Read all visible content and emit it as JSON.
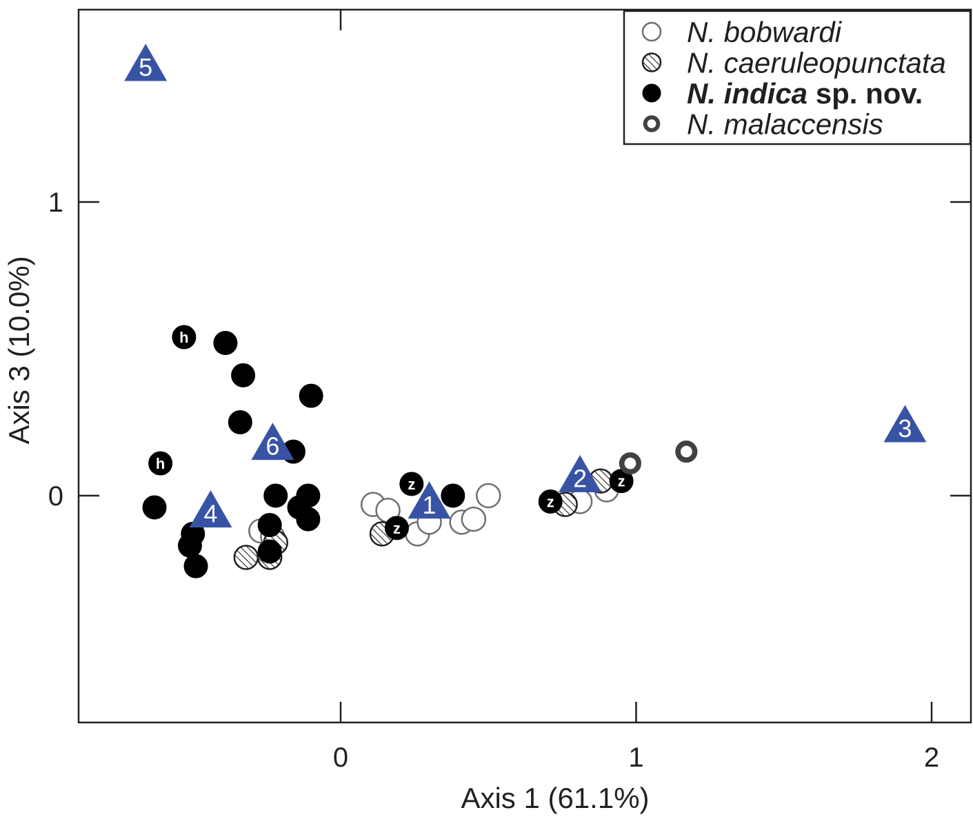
{
  "chart_data": {
    "type": "scatter",
    "xlabel": "Axis 1 (61.1%)",
    "ylabel": "Axis 3 (10.0%)",
    "xlim": [
      -0.88,
      2.13
    ],
    "ylim": [
      -0.78,
      1.65
    ],
    "x_ticks": [
      0,
      1,
      2
    ],
    "y_ticks": [
      0,
      1
    ],
    "x_tick_labels": [
      "0",
      "1",
      "2"
    ],
    "y_tick_labels": [
      "0",
      "1"
    ],
    "grid": false,
    "legend_position": "top-right",
    "legend": [
      {
        "name": "N. bobwardi",
        "style": "open",
        "italic": true
      },
      {
        "name": "N. caeruleopunctata",
        "style": "hatched",
        "italic": true
      },
      {
        "name": "N. indica",
        "suffix": " sp. nov.",
        "style": "filled",
        "italic": true,
        "bold": true
      },
      {
        "name": "N. malaccensis",
        "style": "thick-ring",
        "italic": true
      }
    ],
    "series": [
      {
        "name": "N. bobwardi",
        "style": "open",
        "color": "#6d6e71",
        "points": [
          {
            "x": 0.11,
            "y": -0.03
          },
          {
            "x": 0.16,
            "y": -0.05
          },
          {
            "x": 0.26,
            "y": -0.13
          },
          {
            "x": 0.3,
            "y": -0.09
          },
          {
            "x": 0.41,
            "y": -0.09
          },
          {
            "x": 0.45,
            "y": -0.08
          },
          {
            "x": 0.5,
            "y": 0.0
          },
          {
            "x": 0.81,
            "y": -0.02
          },
          {
            "x": 0.9,
            "y": 0.02
          },
          {
            "x": -0.27,
            "y": -0.12
          },
          {
            "x": -0.23,
            "y": -0.14
          }
        ]
      },
      {
        "name": "N. caeruleopunctata",
        "style": "hatched",
        "color": "#231f20",
        "points": [
          {
            "x": -0.32,
            "y": -0.21
          },
          {
            "x": -0.24,
            "y": -0.21
          },
          {
            "x": -0.22,
            "y": -0.16
          },
          {
            "x": 0.14,
            "y": -0.13
          },
          {
            "x": 0.76,
            "y": -0.03
          },
          {
            "x": 0.88,
            "y": 0.05
          }
        ]
      },
      {
        "name": "N. indica",
        "style": "filled",
        "color": "#000000",
        "points": [
          {
            "x": -0.53,
            "y": 0.54,
            "label": "h"
          },
          {
            "x": -0.39,
            "y": 0.52
          },
          {
            "x": -0.33,
            "y": 0.41
          },
          {
            "x": -0.34,
            "y": 0.25
          },
          {
            "x": -0.1,
            "y": 0.34
          },
          {
            "x": -0.16,
            "y": 0.15
          },
          {
            "x": -0.61,
            "y": 0.11,
            "label": "h"
          },
          {
            "x": -0.63,
            "y": -0.04
          },
          {
            "x": -0.22,
            "y": 0.0
          },
          {
            "x": -0.11,
            "y": 0.0
          },
          {
            "x": -0.14,
            "y": -0.04
          },
          {
            "x": -0.11,
            "y": -0.08
          },
          {
            "x": -0.24,
            "y": -0.1
          },
          {
            "x": -0.5,
            "y": -0.13
          },
          {
            "x": -0.51,
            "y": -0.17
          },
          {
            "x": -0.49,
            "y": -0.24
          },
          {
            "x": -0.24,
            "y": -0.19
          },
          {
            "x": 0.38,
            "y": 0.0
          },
          {
            "x": 0.24,
            "y": 0.04,
            "label": "z"
          },
          {
            "x": 0.19,
            "y": -0.11,
            "label": "z"
          },
          {
            "x": 0.71,
            "y": -0.02,
            "label": "z"
          },
          {
            "x": 0.95,
            "y": 0.05,
            "label": "z"
          }
        ]
      },
      {
        "name": "N. malaccensis",
        "style": "thick-ring",
        "color": "#414042",
        "points": [
          {
            "x": 0.98,
            "y": 0.11
          },
          {
            "x": 1.17,
            "y": 0.15
          }
        ]
      }
    ],
    "annotations": {
      "color": "#3953a4",
      "triangles": [
        {
          "label": "1",
          "x": 0.3,
          "y": -0.03
        },
        {
          "label": "2",
          "x": 0.81,
          "y": 0.06
        },
        {
          "label": "3",
          "x": 1.91,
          "y": 0.23
        },
        {
          "label": "4",
          "x": -0.44,
          "y": -0.06
        },
        {
          "label": "5",
          "x": -0.66,
          "y": 1.46
        },
        {
          "label": "6",
          "x": -0.23,
          "y": 0.17
        }
      ]
    }
  }
}
